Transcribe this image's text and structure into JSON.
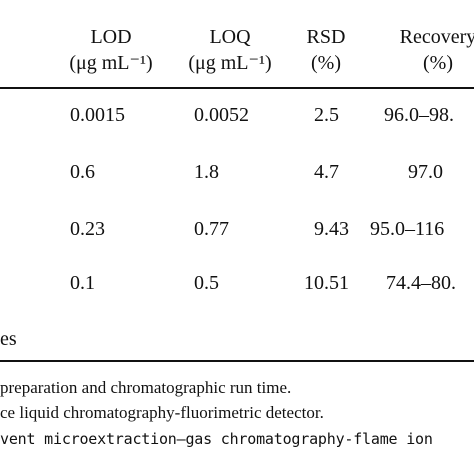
{
  "table": {
    "headers": [
      {
        "line1": "LOD",
        "line2": "(μg mL⁻¹)"
      },
      {
        "line1": "LOQ",
        "line2": "(μg mL⁻¹)"
      },
      {
        "line1": "RSD",
        "line2": "(%)"
      },
      {
        "line1": "Recovery",
        "line2": "(%)"
      }
    ],
    "rows": [
      [
        "0.0015",
        "0.0052",
        "2.5",
        "96.0–98."
      ],
      [
        "0.6",
        "1.8",
        "4.7",
        "97.0"
      ],
      [
        "0.23",
        "0.77",
        "9.43",
        "95.0–116"
      ],
      [
        "0.1",
        "0.5",
        "10.51",
        "74.4–80."
      ]
    ],
    "trailing_text": "es"
  },
  "footnotes": [
    "preparation and chromatographic run time.",
    "ce liquid chromatography-fluorimetric detector.",
    "vent microextraction–gas chromatography-flame ion"
  ]
}
